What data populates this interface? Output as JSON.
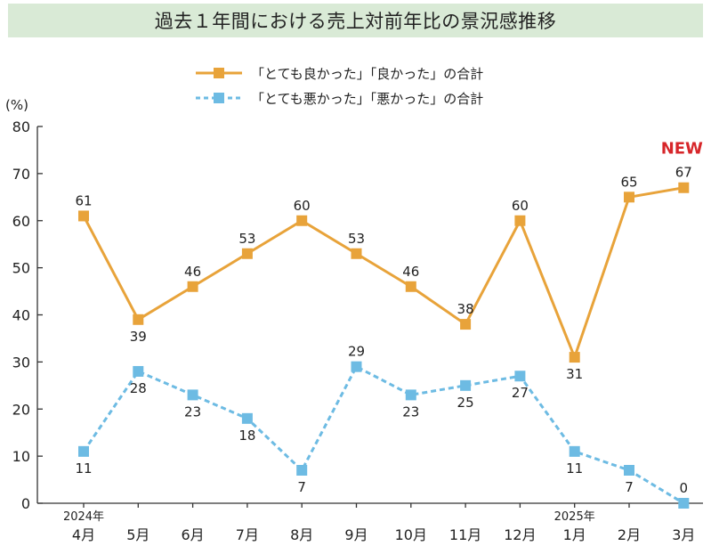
{
  "chart_data": {
    "type": "line",
    "title": "過去１年間における売上対前年比の景況感推移",
    "ylabel": "(%)",
    "ylim": [
      0,
      80
    ],
    "yticks": [
      0,
      10,
      20,
      30,
      40,
      50,
      60,
      70,
      80
    ],
    "grid": false,
    "legend_position": "top-center",
    "categories": [
      "4月",
      "5月",
      "6月",
      "7月",
      "8月",
      "9月",
      "10月",
      "11月",
      "12月",
      "1月",
      "2月",
      "3月"
    ],
    "year_labels": [
      {
        "category": "4月",
        "label": "2024年"
      },
      {
        "category": "1月",
        "label": "2025年"
      }
    ],
    "series": [
      {
        "name": "「とても良かった」「良かった」の合計",
        "color": "#e8a33a",
        "line_style": "solid",
        "values": [
          61,
          39,
          46,
          53,
          60,
          53,
          46,
          38,
          60,
          31,
          65,
          67
        ]
      },
      {
        "name": "「とても悪かった」「悪かった」の合計",
        "color": "#6dbbe3",
        "line_style": "dashed",
        "values": [
          11,
          28,
          23,
          18,
          7,
          29,
          23,
          25,
          27,
          11,
          7,
          0
        ]
      }
    ],
    "annotation": {
      "text": "NEW",
      "category": "3月",
      "color": "#d7262a"
    }
  }
}
